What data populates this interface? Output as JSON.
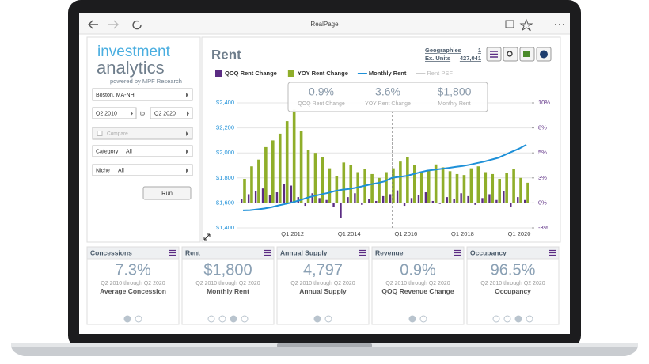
{
  "browser": {
    "title": "RealPage"
  },
  "sidebar": {
    "logo_line1": "investment",
    "logo_line2": "analytics",
    "tagline": "powered by MPF Research",
    "location": "Boston, MA-NH",
    "from": "Q2 2010",
    "to_word": "to",
    "to": "Q2 2020",
    "compare": "Compare",
    "category_label": "Category",
    "category_value": "All",
    "niche_label": "Niche",
    "niche_value": "All",
    "run": "Run"
  },
  "header": {
    "title": "Rent",
    "geographies_label": "Geographies",
    "geographies_value": "1",
    "units_label": "Ex. Units",
    "units_value": "427,041"
  },
  "chart": {
    "type": "bar",
    "categories": [
      null,
      null,
      null,
      null,
      null,
      null,
      null,
      "Q1 2012",
      null,
      null,
      null,
      null,
      null,
      null,
      null,
      "Q1 2014",
      null,
      null,
      null,
      null,
      null,
      null,
      null,
      "Q1 2016",
      null,
      null,
      null,
      null,
      null,
      null,
      null,
      "Q1 2018",
      null,
      null,
      null,
      null,
      null,
      null,
      null,
      "Q1 2020",
      null
    ],
    "series": [
      {
        "name": "QOQ Rent Change",
        "color": "#5b2c83",
        "axis": "y2",
        "values": [
          0.4,
          0.9,
          1.2,
          1.5,
          0.8,
          1.1,
          2.0,
          1.8,
          0.6,
          -0.3,
          1.0,
          0.5,
          0.3,
          -0.4,
          -1.6,
          0.6,
          1.0,
          -0.2,
          0.4,
          0.2,
          0.7,
          0.9,
          1.3,
          -0.3,
          0.5,
          0.8,
          1.1,
          0.2,
          -0.1,
          0.6,
          0.4,
          1.0,
          0.7,
          -0.2,
          0.5,
          0.9,
          0.3,
          1.2,
          -0.4,
          0.6,
          0.3
        ]
      },
      {
        "name": "YOY Rent Change",
        "color": "#8fae2a",
        "axis": "y2",
        "values": [
          2.5,
          3.8,
          4.5,
          5.8,
          6.5,
          7.2,
          8.5,
          9.7,
          7.5,
          5.5,
          5.2,
          4.8,
          3.6,
          2.8,
          4.2,
          3.9,
          3.2,
          3.5,
          3.0,
          2.6,
          3.2,
          3.6,
          4.3,
          4.8,
          3.9,
          3.1,
          3.4,
          4.0,
          3.7,
          3.3,
          3.0,
          2.9,
          3.6,
          3.8,
          3.2,
          3.0,
          2.5,
          3.1,
          3.5,
          2.6,
          2.1
        ]
      },
      {
        "name": "Monthly Rent",
        "color": "#1e90d8",
        "values": [
          1540,
          1542,
          1548,
          1555,
          1565,
          1580,
          1592,
          1605,
          1620,
          1640,
          1655,
          1668,
          1680,
          1695,
          1705,
          1712,
          1722,
          1735,
          1748,
          1758,
          1772,
          1800,
          1808,
          1815,
          1830,
          1845,
          1858,
          1865,
          1872,
          1880,
          1888,
          1895,
          1905,
          1918,
          1930,
          1945,
          1960,
          1985,
          2010,
          2035,
          2065
        ]
      }
    ],
    "inactive_legend": "Rent PSF",
    "ylim": [
      1400,
      2400
    ],
    "yticks": [
      {
        "value": 1400,
        "label": "$1,400"
      },
      {
        "value": 1600,
        "label": "$1,600"
      },
      {
        "value": 1800,
        "label": "$1,800"
      },
      {
        "value": 2000,
        "label": "$2,000"
      },
      {
        "value": 2200,
        "label": "$2,200"
      },
      {
        "value": 2400,
        "label": "$2,400"
      }
    ],
    "y2lim": [
      -2.6,
      10.4
    ],
    "y2ticks": [
      {
        "value": -2.6,
        "label": "-3%"
      },
      {
        "value": 0,
        "label": "0%"
      },
      {
        "value": 2.6,
        "label": "3%"
      },
      {
        "value": 5.2,
        "label": "5%"
      },
      {
        "value": 7.8,
        "label": "8%"
      },
      {
        "value": 10.4,
        "label": "10%"
      }
    ],
    "grid": true,
    "tooltip": [
      {
        "value": "0.9%",
        "label": "QOQ Rent Change"
      },
      {
        "value": "3.6%",
        "label": "YOY Rent Change"
      },
      {
        "value": "$1,800",
        "label": "Monthly Rent"
      }
    ]
  },
  "cards": [
    {
      "title": "Concessions",
      "value": "7.3%",
      "period": "Q2 2010 through Q2 2020",
      "label": "Average Concession"
    },
    {
      "title": "Rent",
      "value": "$1,800",
      "period": "Q2 2010 through Q2 2020",
      "label": "Monthly Rent"
    },
    {
      "title": "Annual Supply",
      "value": "4,797",
      "period": "Q2 2010 through Q2 2020",
      "label": "Annual Supply"
    },
    {
      "title": "Revenue",
      "value": "0.9%",
      "period": "Q2 2010 through Q2 2020",
      "label": "QOQ Revenue Change"
    },
    {
      "title": "Occupancy",
      "value": "96.5%",
      "period": "Q2 2010 through Q2 2020",
      "label": "Occupancy"
    }
  ]
}
